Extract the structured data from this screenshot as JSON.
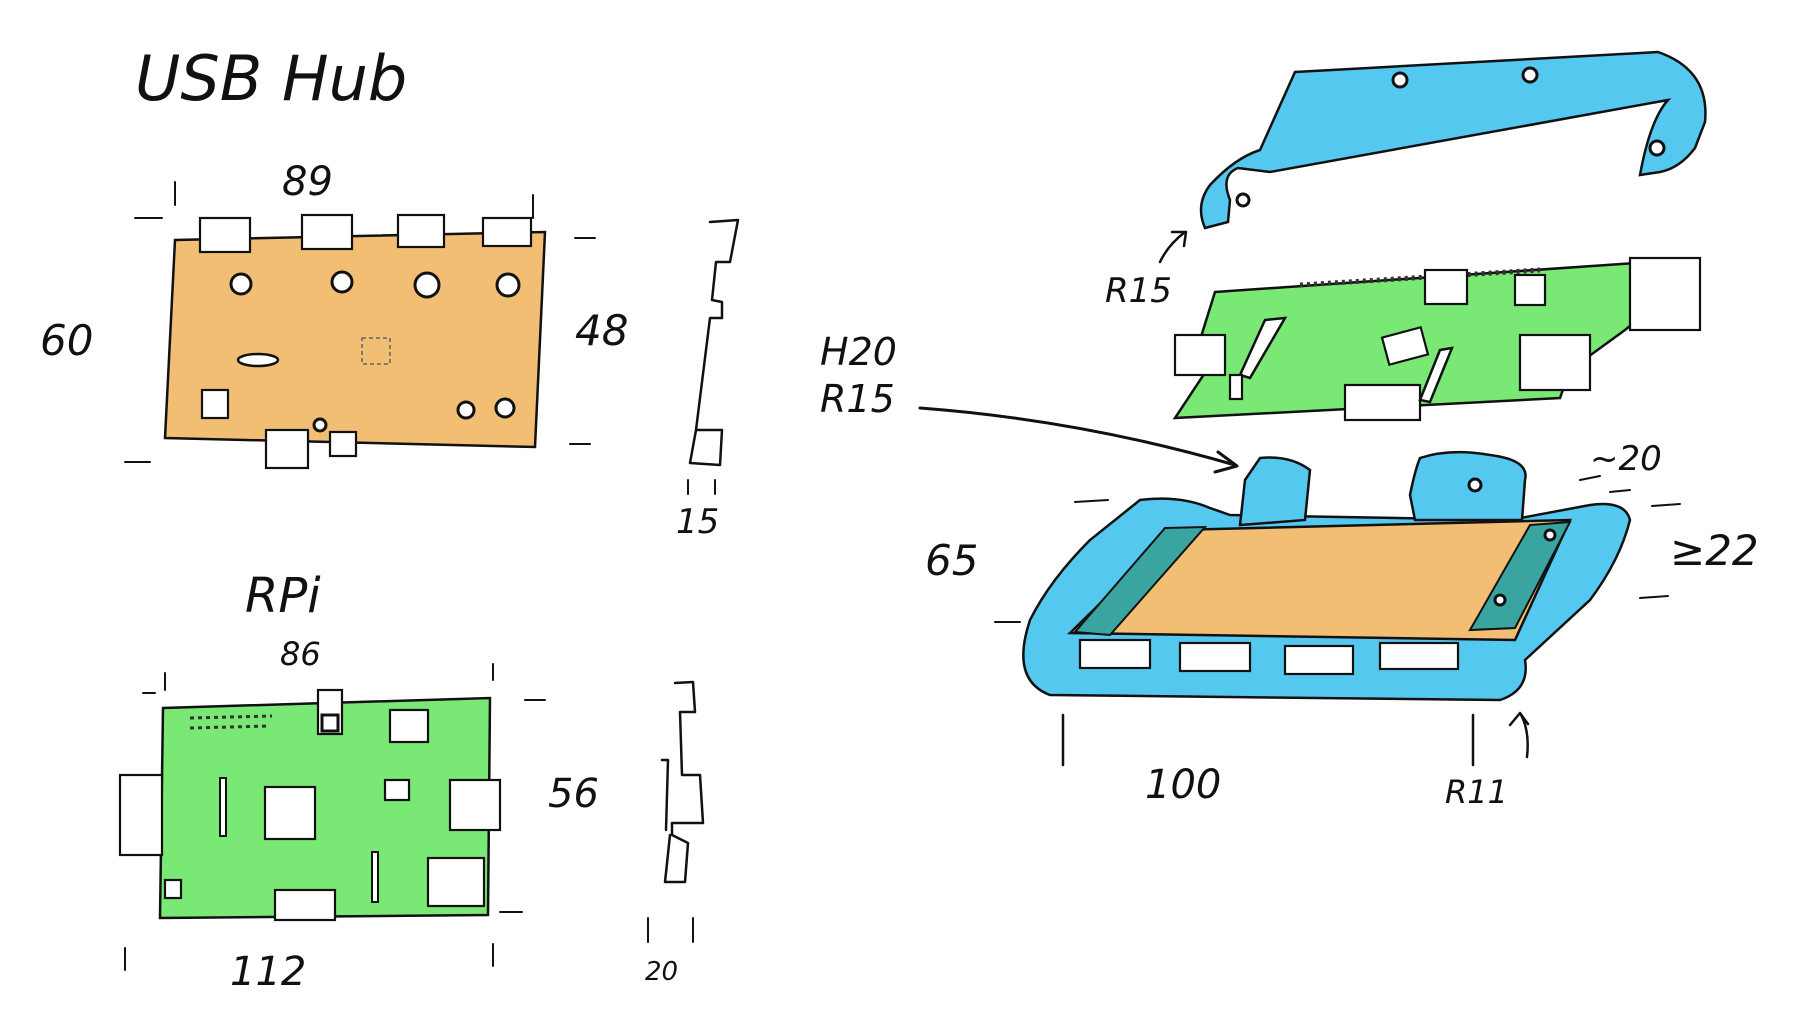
{
  "sketch": {
    "colors": {
      "usb_board": "#F2BE74",
      "rpi_board": "#79E874",
      "case": "#55C8F0",
      "ink": "#111111"
    },
    "usb_hub": {
      "title": "USB Hub",
      "width_label": "89",
      "height_label": "60",
      "inner_height_label": "48",
      "thickness_label": "15"
    },
    "rpi": {
      "title": "RPi",
      "top_label": "86",
      "width_label": "112",
      "height_label": "56",
      "thickness_label": "20"
    },
    "assembly": {
      "top_cover_radius": "R15",
      "post_label_line1": "H20",
      "post_label_line2": "R15",
      "depth_label": "65",
      "length_label": "100",
      "bottom_radius": "R11",
      "gap_label": "~20",
      "height_label": "≥22"
    }
  }
}
